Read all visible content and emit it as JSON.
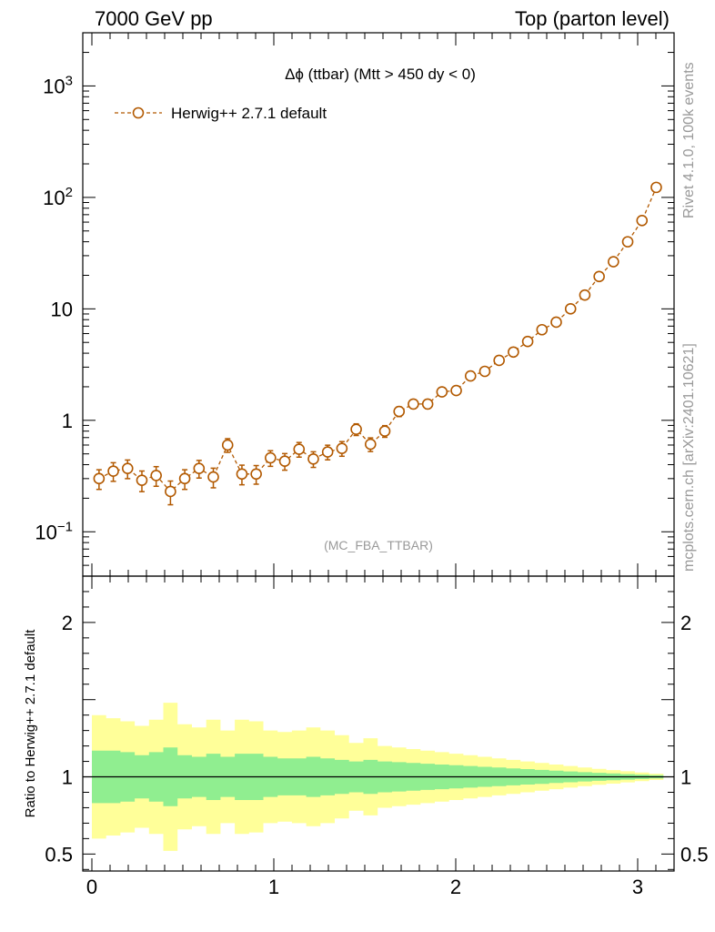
{
  "header": {
    "left": "7000 GeV pp",
    "right": "Top (parton level)"
  },
  "side": {
    "rivet": "Rivet 4.1.0,  100k events",
    "mcplots": "mcplots.cern.ch [arXiv:2401.10621]"
  },
  "colors": {
    "series": "#b25900",
    "band_inner": "#90ee90",
    "band_outer": "#ffff99",
    "axis": "#000000",
    "watermark": "#999999"
  },
  "chart_data": [
    {
      "id": "main",
      "type": "scatter",
      "title": "Δϕ (ttbar) (Mtt > 450 dy < 0)",
      "annotation": "(MC_FBA_TTBAR)",
      "yscale": "log",
      "xlim": [
        -0.05,
        3.2
      ],
      "ylim": [
        0.04,
        3000
      ],
      "ytick_labels": [
        {
          "v": 0.1,
          "base": "10",
          "exp": "−1"
        },
        {
          "v": 1,
          "base": "1",
          "exp": ""
        },
        {
          "v": 10,
          "base": "10",
          "exp": ""
        },
        {
          "v": 100,
          "base": "10",
          "exp": "2"
        },
        {
          "v": 1000,
          "base": "10",
          "exp": "3"
        }
      ],
      "legend": {
        "label": "Herwig++ 2.7.1 default",
        "position": "top-left"
      },
      "series": [
        {
          "name": "Herwig++ 2.7.1 default",
          "style": "dashed line with open circles",
          "x": [
            0.0393,
            0.1178,
            0.1963,
            0.2749,
            0.3534,
            0.432,
            0.5105,
            0.589,
            0.6676,
            0.7461,
            0.8247,
            0.9032,
            0.9817,
            1.0603,
            1.1388,
            1.2174,
            1.2959,
            1.3744,
            1.453,
            1.5315,
            1.6101,
            1.6886,
            1.7671,
            1.8457,
            1.9242,
            2.0028,
            2.0813,
            2.1598,
            2.2384,
            2.3169,
            2.3955,
            2.474,
            2.5525,
            2.6311,
            2.7096,
            2.7882,
            2.8667,
            2.9452,
            3.0238,
            3.1023
          ],
          "y": [
            0.3,
            0.35,
            0.37,
            0.29,
            0.32,
            0.23,
            0.3,
            0.37,
            0.31,
            0.6,
            0.33,
            0.33,
            0.46,
            0.43,
            0.55,
            0.45,
            0.52,
            0.56,
            0.83,
            0.61,
            0.8,
            1.2,
            1.4,
            1.4,
            1.8,
            1.85,
            2.5,
            2.75,
            3.45,
            4.1,
            5.1,
            6.5,
            7.6,
            10.0,
            13.3,
            19.5,
            26.5,
            40.0,
            62.0,
            123.0
          ],
          "err_rel": [
            0.2,
            0.19,
            0.19,
            0.21,
            0.2,
            0.24,
            0.2,
            0.18,
            0.2,
            0.14,
            0.2,
            0.19,
            0.16,
            0.17,
            0.15,
            0.16,
            0.15,
            0.15,
            0.12,
            0.14,
            0.12,
            0.1,
            0.09,
            0.09,
            0.08,
            0.08,
            0.07,
            0.065,
            0.06,
            0.055,
            0.05,
            0.045,
            0.04,
            0.035,
            0.032,
            0.027,
            0.024,
            0.02,
            0.016,
            0.012
          ]
        }
      ]
    },
    {
      "id": "ratio",
      "type": "area",
      "ylabel": "Ratio to Herwig++ 2.7.1 default",
      "xlim": [
        -0.05,
        3.2
      ],
      "ylim": [
        0.39,
        2.3
      ],
      "xticks": [
        0,
        1,
        2,
        3
      ],
      "xtick_labels": [
        "0",
        "1",
        "2",
        "3"
      ],
      "yticks": [
        0.5,
        1,
        2
      ],
      "ytick_labels": [
        "0.5",
        "1",
        "2"
      ],
      "reference_line": 1,
      "bin_edges": [
        0,
        0.0785,
        0.1571,
        0.2356,
        0.3142,
        0.3927,
        0.4712,
        0.5498,
        0.6283,
        0.7069,
        0.7854,
        0.8639,
        0.9425,
        1.021,
        1.0996,
        1.1781,
        1.2566,
        1.3352,
        1.4137,
        1.4923,
        1.5708,
        1.6493,
        1.7279,
        1.8064,
        1.885,
        1.9635,
        2.042,
        2.1206,
        2.1991,
        2.2777,
        2.3562,
        2.4347,
        2.5133,
        2.5918,
        2.6704,
        2.7489,
        2.8274,
        2.906,
        2.9845,
        3.0631,
        3.1416
      ],
      "band_inner_halfwidth": [
        0.17,
        0.17,
        0.16,
        0.14,
        0.16,
        0.19,
        0.14,
        0.13,
        0.15,
        0.13,
        0.15,
        0.15,
        0.13,
        0.12,
        0.12,
        0.13,
        0.12,
        0.11,
        0.1,
        0.11,
        0.1,
        0.095,
        0.09,
        0.085,
        0.08,
        0.075,
        0.07,
        0.065,
        0.06,
        0.055,
        0.05,
        0.045,
        0.04,
        0.035,
        0.03,
        0.026,
        0.022,
        0.018,
        0.014,
        0.01
      ],
      "band_outer_halfwidth": [
        0.4,
        0.38,
        0.36,
        0.33,
        0.37,
        0.48,
        0.34,
        0.32,
        0.37,
        0.3,
        0.37,
        0.36,
        0.3,
        0.29,
        0.3,
        0.32,
        0.3,
        0.27,
        0.22,
        0.25,
        0.2,
        0.19,
        0.18,
        0.17,
        0.16,
        0.15,
        0.14,
        0.13,
        0.12,
        0.11,
        0.1,
        0.09,
        0.08,
        0.07,
        0.06,
        0.052,
        0.044,
        0.036,
        0.028,
        0.02
      ]
    }
  ]
}
